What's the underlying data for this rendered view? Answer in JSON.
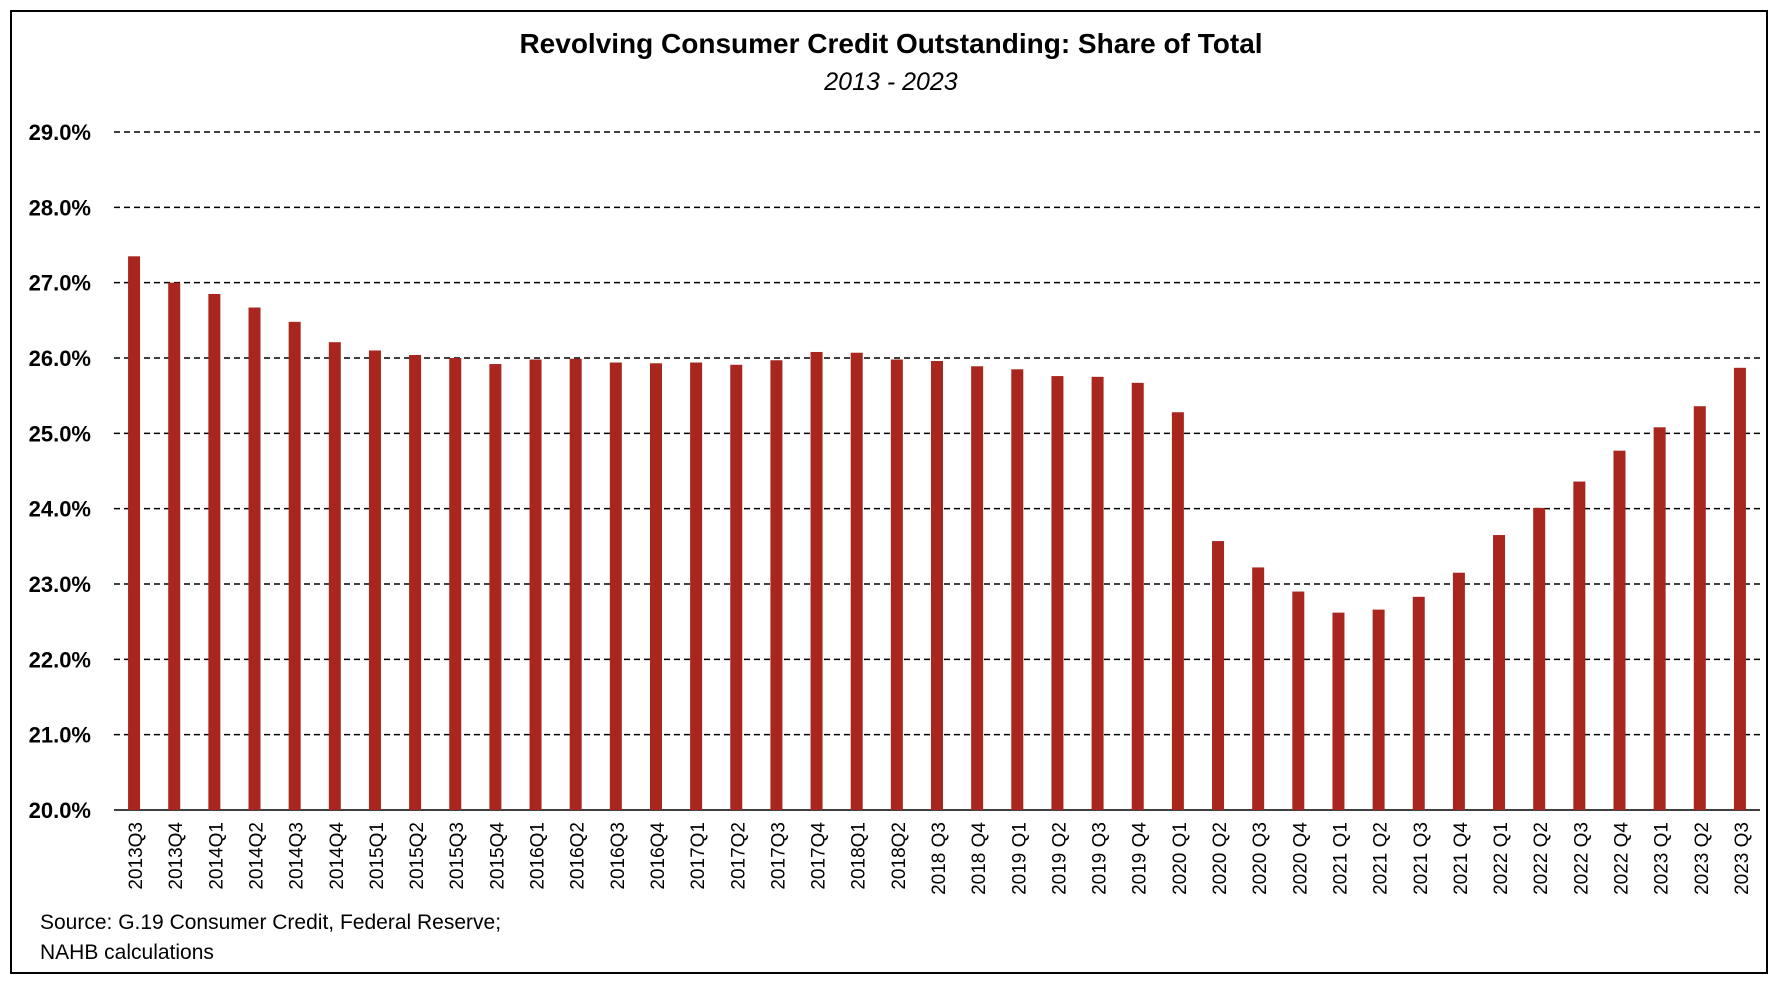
{
  "chart_data": {
    "type": "bar",
    "title": "Revolving Consumer Credit Outstanding: Share of Total",
    "subtitle": "2013 - 2023",
    "xlabel": "",
    "ylabel": "",
    "ylim": [
      20.0,
      29.0
    ],
    "yticks": [
      "20.0%",
      "21.0%",
      "22.0%",
      "23.0%",
      "24.0%",
      "25.0%",
      "26.0%",
      "27.0%",
      "28.0%",
      "29.0%"
    ],
    "ytick_values": [
      20,
      21,
      22,
      23,
      24,
      25,
      26,
      27,
      28,
      29
    ],
    "grid": "horizontal dashed",
    "bar_color": "#A8261E",
    "categories": [
      "2013Q3",
      "2013Q4",
      "2014Q1",
      "2014Q2",
      "2014Q3",
      "2014Q4",
      "2015Q1",
      "2015Q2",
      "2015Q3",
      "2015Q4",
      "2016Q1",
      "2016Q2",
      "2016Q3",
      "2016Q4",
      "2017Q1",
      "2017Q2",
      "2017Q3",
      "2017Q4",
      "2018Q1",
      "2018Q2",
      "2018 Q3",
      "2018 Q4",
      "2019 Q1",
      "2019 Q2",
      "2019 Q3",
      "2019 Q4",
      "2020 Q1",
      "2020 Q2",
      "2020 Q3",
      "2020 Q4",
      "2021 Q1",
      "2021 Q2",
      "2021 Q3",
      "2021 Q4",
      "2022 Q1",
      "2022 Q2",
      "2022 Q3",
      "2022 Q4",
      "2023 Q1",
      "2023 Q2",
      "2023 Q3"
    ],
    "values": [
      27.35,
      27.0,
      26.85,
      26.67,
      26.48,
      26.21,
      26.1,
      26.04,
      26.0,
      25.92,
      25.98,
      25.99,
      25.94,
      25.93,
      25.94,
      25.91,
      25.97,
      26.08,
      26.07,
      25.98,
      25.96,
      25.89,
      25.85,
      25.76,
      25.75,
      25.67,
      25.28,
      23.57,
      23.22,
      22.9,
      22.62,
      22.66,
      22.83,
      23.15,
      23.65,
      24.01,
      24.36,
      24.77,
      25.08,
      25.36,
      25.87
    ]
  },
  "source": {
    "line1": "Source: G.19 Consumer Credit, Federal Reserve;",
    "line2": "NAHB calculations"
  }
}
